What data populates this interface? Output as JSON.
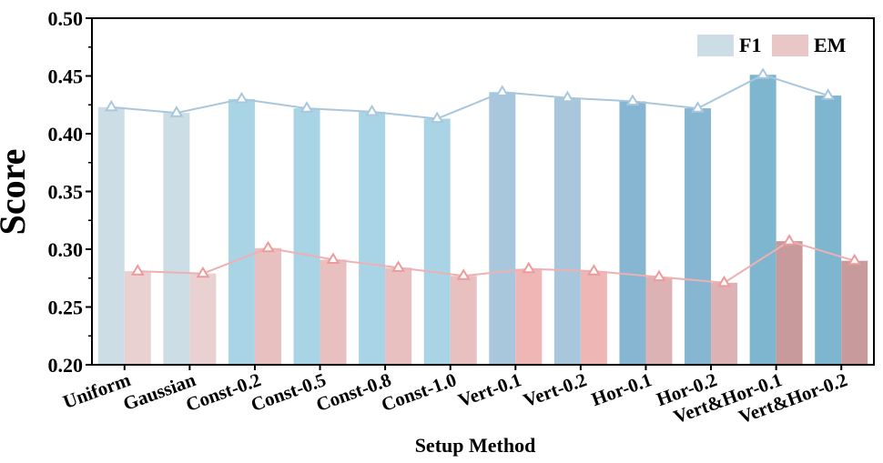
{
  "chart_data": {
    "type": "bar",
    "title": "",
    "xlabel": "Setup Method",
    "ylabel": "Score",
    "ylim": [
      0.2,
      0.5
    ],
    "yticks": [
      "0.20",
      "0.25",
      "0.30",
      "0.35",
      "0.40",
      "0.45",
      "0.50"
    ],
    "grid": false,
    "legend_position": "top-right",
    "categories": [
      "Uniform",
      "Gaussian",
      "Const-0.2",
      "Const-0.5",
      "Const-0.8",
      "Const-1.0",
      "Vert-0.1",
      "Vert-0.2",
      "Hor-0.1",
      "Hor-0.2",
      "Vert&Hor-0.1",
      "Vert&Hor-0.2"
    ],
    "series": [
      {
        "name": "F1",
        "values": [
          0.423,
          0.418,
          0.43,
          0.422,
          0.419,
          0.413,
          0.436,
          0.431,
          0.428,
          0.422,
          0.451,
          0.433
        ],
        "bar_colors": [
          "#cddde6",
          "#cddde6",
          "#a9d4e6",
          "#a9d4e6",
          "#a9d4e6",
          "#a9d4e6",
          "#a8c7dd",
          "#a8c7dd",
          "#86b6d1",
          "#86b6d1",
          "#7eb5cf",
          "#7eb5cf"
        ],
        "legend_color": "#cddde6",
        "line_color": "#a8c7dd",
        "marker_color": "#a8c7dd"
      },
      {
        "name": "EM",
        "values": [
          0.281,
          0.279,
          0.301,
          0.291,
          0.284,
          0.277,
          0.283,
          0.281,
          0.276,
          0.271,
          0.307,
          0.29
        ],
        "bar_colors": [
          "#e9d1d1",
          "#e9d1d1",
          "#e8c0c0",
          "#e8c0c0",
          "#e8c0c0",
          "#e8c0c0",
          "#efb6b6",
          "#efb6b6",
          "#ddb2b4",
          "#ddb2b4",
          "#c99a9b",
          "#c99a9b"
        ],
        "legend_color": "#e9c7c7",
        "line_color": "#eeb0b0",
        "marker_color": "#ef9a9a"
      }
    ]
  }
}
